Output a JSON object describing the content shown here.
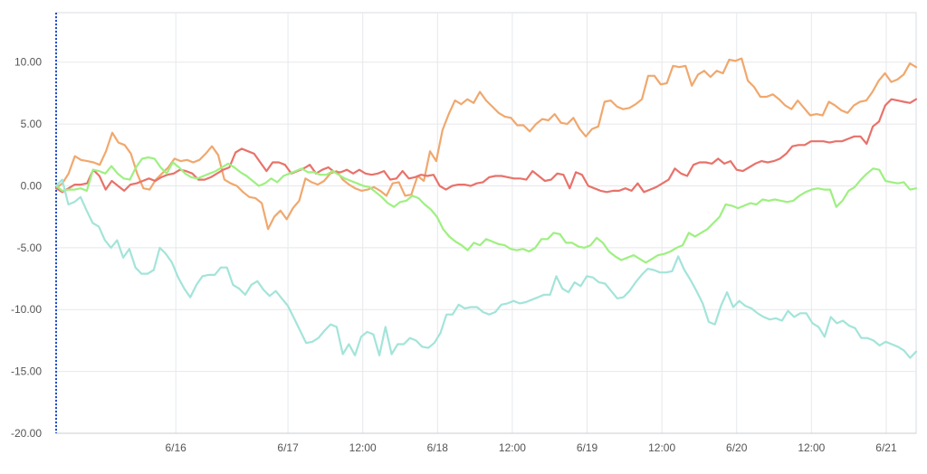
{
  "chart_data": {
    "type": "line",
    "title": "",
    "xlabel": "",
    "ylabel": "",
    "ylim": [
      -20,
      14
    ],
    "y_ticks": [
      "-20.00",
      "-15.00",
      "-10.00",
      "-5.00",
      "0.00",
      "5.00",
      "10.00"
    ],
    "x_ticks": [
      "6/16",
      "6/17",
      "12:00",
      "6/18",
      "12:00",
      "6/19",
      "12:00",
      "6/20",
      "12:00",
      "6/21"
    ],
    "x_tick_positions": [
      16,
      31,
      41,
      51,
      61,
      71,
      81,
      91,
      101,
      111
    ],
    "x_range": [
      0,
      115
    ],
    "grid": true,
    "legend": "none",
    "series": [
      {
        "color": "#f0a86e",
        "values": [
          -0.2,
          0.2,
          1.0,
          2.4,
          2.1,
          2.0,
          1.9,
          1.7,
          2.8,
          4.3,
          3.5,
          3.3,
          2.6,
          1.0,
          -0.2,
          -0.3,
          0.5,
          1.0,
          1.5,
          2.2,
          2.0,
          2.1,
          1.9,
          2.1,
          2.6,
          3.2,
          2.5,
          0.5,
          0.2,
          0.0,
          -0.5,
          -0.9,
          -1.0,
          -1.4,
          -3.5,
          -2.5,
          -2.0,
          -2.7,
          -1.8,
          -1.2,
          0.6,
          0.3,
          0.1,
          0.4,
          1.0,
          1.2,
          0.5,
          0.1,
          -0.2,
          -0.4,
          -0.3,
          -0.1,
          -0.4,
          -0.8,
          0.2,
          0.3,
          -0.8,
          -0.7,
          0.8,
          0.4,
          2.8,
          2.0,
          4.5,
          5.8,
          6.9,
          6.6,
          7.0,
          6.7,
          7.6,
          6.9,
          6.4,
          5.9,
          5.6,
          5.5,
          4.9,
          4.9,
          4.4,
          5.0,
          5.4,
          5.3,
          5.8,
          5.1,
          5.0,
          5.5,
          4.6,
          4.0,
          4.6,
          4.8,
          6.8,
          6.9,
          6.4,
          6.2,
          6.3,
          6.6,
          7.0,
          8.9,
          8.9,
          8.2,
          8.3,
          9.7,
          9.6,
          9.7,
          8.1,
          9.0,
          9.3,
          8.8,
          9.3,
          9.1,
          10.2,
          10.1,
          10.3,
          8.5,
          8.0,
          7.2,
          7.2,
          7.4,
          7.0,
          6.5,
          6.2,
          6.9,
          6.3,
          5.7,
          5.8,
          5.7,
          6.8,
          6.5,
          6.1,
          5.9,
          6.5,
          6.8,
          6.9,
          7.6,
          8.5,
          9.1,
          8.4,
          8.6,
          9.0,
          9.9,
          9.6
        ]
      },
      {
        "color": "#e8726a",
        "values": [
          -0.2,
          -0.5,
          -0.2,
          0.1,
          0.1,
          0.2,
          1.3,
          0.8,
          -0.3,
          0.4,
          0.0,
          -0.4,
          0.1,
          0.2,
          0.4,
          0.6,
          0.4,
          0.7,
          0.9,
          1.0,
          1.3,
          1.2,
          1.0,
          0.5,
          0.5,
          0.7,
          1.0,
          1.3,
          1.5,
          2.7,
          3.0,
          2.8,
          2.6,
          1.9,
          1.2,
          1.9,
          1.9,
          1.7,
          1.0,
          1.2,
          1.4,
          1.7,
          1.0,
          1.3,
          1.5,
          1.1,
          1.1,
          1.3,
          1.0,
          1.3,
          1.0,
          0.9,
          1.0,
          1.2,
          0.5,
          0.6,
          1.2,
          0.6,
          0.7,
          0.9,
          0.8,
          0.9,
          0.0,
          -0.3,
          0.0,
          0.1,
          0.1,
          0.0,
          0.2,
          0.3,
          0.7,
          0.8,
          0.8,
          0.7,
          0.6,
          0.6,
          0.5,
          1.2,
          0.8,
          0.4,
          0.5,
          1.0,
          0.9,
          -0.2,
          1.1,
          0.9,
          0.0,
          -0.2,
          -0.4,
          -0.5,
          -0.4,
          -0.4,
          -0.2,
          -0.4,
          0.2,
          -0.5,
          -0.3,
          -0.1,
          0.2,
          0.5,
          1.4,
          1.0,
          0.8,
          1.7,
          1.9,
          1.9,
          1.8,
          2.2,
          1.8,
          2.0,
          1.3,
          1.2,
          1.5,
          1.8,
          2.0,
          1.9,
          2.0,
          2.2,
          2.6,
          3.2,
          3.3,
          3.3,
          3.6,
          3.6,
          3.6,
          3.5,
          3.6,
          3.6,
          3.8,
          4.0,
          4.0,
          3.4,
          4.8,
          5.2,
          6.5,
          7.0,
          6.9,
          6.8,
          6.7,
          7.0
        ]
      },
      {
        "color": "#9ef081",
        "values": [
          0.0,
          -0.4,
          -0.3,
          -0.3,
          -0.2,
          -0.4,
          1.3,
          1.2,
          1.0,
          1.6,
          1.0,
          0.6,
          0.5,
          1.5,
          2.2,
          2.3,
          2.2,
          1.5,
          1.0,
          1.9,
          1.5,
          1.0,
          0.7,
          0.6,
          0.8,
          1.0,
          1.2,
          1.5,
          1.8,
          1.5,
          1.1,
          0.8,
          0.4,
          0.0,
          0.2,
          0.6,
          0.3,
          0.8,
          1.0,
          1.2,
          1.4,
          1.1,
          1.1,
          0.9,
          0.9,
          1.2,
          0.9,
          0.6,
          0.4,
          0.2,
          0.0,
          -0.1,
          -0.5,
          -0.9,
          -1.4,
          -1.7,
          -1.3,
          -1.2,
          -0.8,
          -1.0,
          -1.5,
          -1.9,
          -2.5,
          -3.5,
          -4.1,
          -4.5,
          -4.8,
          -5.2,
          -4.6,
          -4.8,
          -4.3,
          -4.5,
          -4.7,
          -4.8,
          -5.1,
          -5.2,
          -5.1,
          -5.3,
          -5.0,
          -4.3,
          -4.3,
          -3.8,
          -3.9,
          -4.6,
          -4.6,
          -4.9,
          -5.0,
          -4.8,
          -4.2,
          -4.6,
          -5.3,
          -5.7,
          -6.0,
          -5.8,
          -5.6,
          -5.9,
          -6.2,
          -5.9,
          -5.6,
          -5.5,
          -5.3,
          -5.0,
          -4.8,
          -3.8,
          -4.1,
          -3.8,
          -3.5,
          -3.0,
          -2.5,
          -1.5,
          -1.6,
          -1.8,
          -1.6,
          -1.4,
          -1.5,
          -1.1,
          -1.2,
          -1.1,
          -1.2,
          -1.3,
          -1.2,
          -0.8,
          -0.5,
          -0.3,
          -0.2,
          -0.3,
          -0.3,
          -1.7,
          -1.2,
          -0.4,
          -0.1,
          0.5,
          1.0,
          1.4,
          1.3,
          0.4,
          0.3,
          0.2,
          0.3,
          -0.3,
          -0.2
        ]
      },
      {
        "color": "#a3e4da",
        "values": [
          0.0,
          0.5,
          -1.5,
          -1.3,
          -0.9,
          -2.0,
          -3.0,
          -3.3,
          -4.4,
          -5.0,
          -4.4,
          -5.8,
          -5.1,
          -6.6,
          -7.1,
          -7.1,
          -6.8,
          -5.0,
          -5.5,
          -6.2,
          -7.4,
          -8.3,
          -9.0,
          -8.0,
          -7.3,
          -7.2,
          -7.2,
          -6.6,
          -6.6,
          -8.0,
          -8.3,
          -8.8,
          -8.0,
          -7.7,
          -8.4,
          -8.9,
          -8.5,
          -9.1,
          -9.7,
          -10.7,
          -11.7,
          -12.7,
          -12.6,
          -12.3,
          -11.7,
          -11.2,
          -11.4,
          -13.6,
          -12.8,
          -13.7,
          -12.2,
          -11.8,
          -12.0,
          -13.7,
          -11.4,
          -13.6,
          -12.8,
          -12.8,
          -12.3,
          -12.5,
          -13.0,
          -13.1,
          -12.7,
          -11.9,
          -10.4,
          -10.4,
          -9.6,
          -9.9,
          -9.8,
          -9.8,
          -10.2,
          -10.4,
          -10.2,
          -9.6,
          -9.5,
          -9.3,
          -9.5,
          -9.4,
          -9.2,
          -9.0,
          -8.8,
          -8.8,
          -7.3,
          -8.3,
          -8.6,
          -7.8,
          -8.1,
          -7.3,
          -7.4,
          -7.8,
          -7.9,
          -8.5,
          -9.1,
          -9.0,
          -8.5,
          -7.8,
          -7.2,
          -6.7,
          -6.8,
          -7.0,
          -7.0,
          -6.9,
          -5.7,
          -6.8,
          -7.6,
          -8.5,
          -9.5,
          -11.0,
          -11.2,
          -9.7,
          -8.6,
          -9.8,
          -9.3,
          -9.7,
          -9.9,
          -10.3,
          -10.6,
          -10.8,
          -10.7,
          -10.9,
          -10.1,
          -10.6,
          -10.3,
          -10.3,
          -11.1,
          -11.4,
          -12.2,
          -10.6,
          -11.1,
          -10.9,
          -11.3,
          -11.5,
          -12.3,
          -12.3,
          -12.5,
          -12.9,
          -12.6,
          -12.8,
          -13.0,
          -13.3,
          -13.9,
          -13.4
        ]
      }
    ]
  }
}
